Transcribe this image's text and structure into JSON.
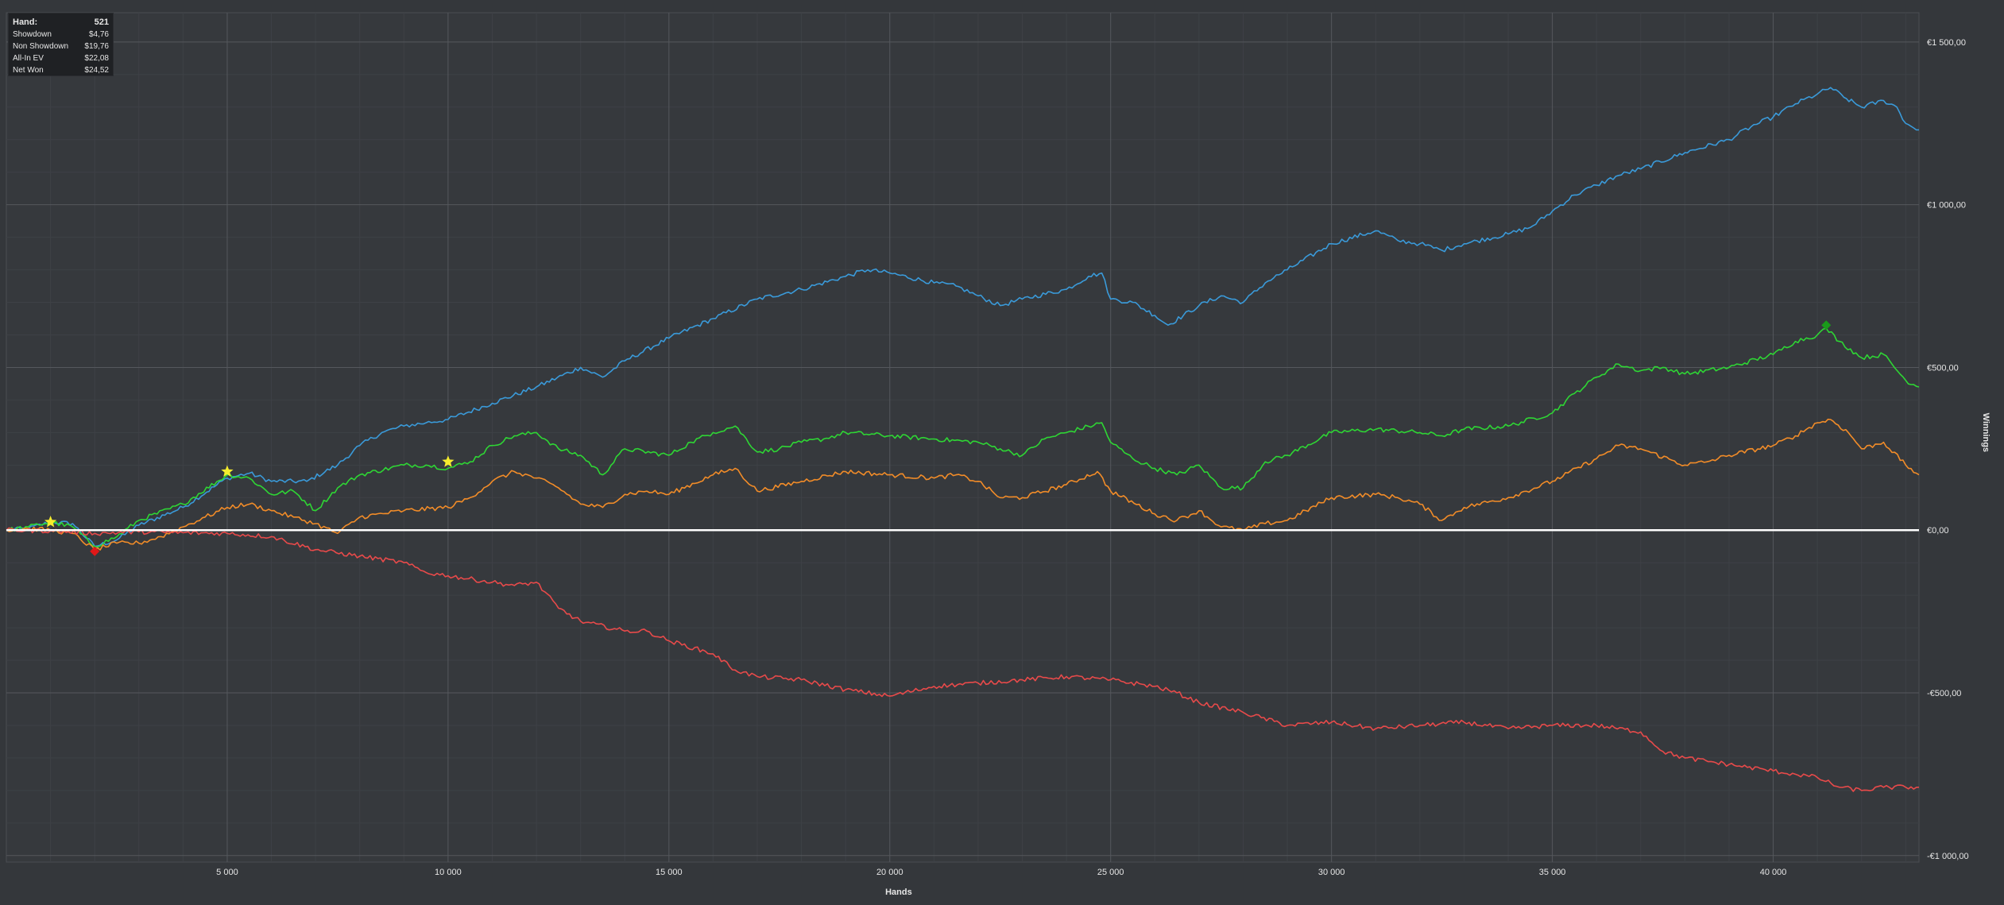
{
  "tooltip": {
    "hand_label": "Hand:",
    "hand_value": "521",
    "rows": [
      {
        "label": "Showdown",
        "value": "$4,76"
      },
      {
        "label": "Non Showdown",
        "value": "$19,76"
      },
      {
        "label": "All-In EV",
        "value": "$22,08"
      },
      {
        "label": "Net Won",
        "value": "$24,52"
      }
    ]
  },
  "chart_data": {
    "type": "line",
    "xlabel": "Hands",
    "ylabel": "Winnings",
    "xlim": [
      0,
      43300
    ],
    "ylim": [
      -1020,
      1590
    ],
    "x_ticks": [
      5000,
      10000,
      15000,
      20000,
      25000,
      30000,
      35000,
      40000
    ],
    "x_tick_labels": [
      "5 000",
      "10 000",
      "15 000",
      "20 000",
      "25 000",
      "30 000",
      "35 000",
      "40 000"
    ],
    "y_ticks": [
      1500,
      1000,
      500,
      0,
      -500,
      -1000
    ],
    "y_tick_labels": [
      "€1 500,00",
      "€1 000,00",
      "€500,00",
      "€0,00",
      "-€500,00",
      "-€1 000,00"
    ],
    "grid": true,
    "zero_line_color": "#ffffff",
    "series": [
      {
        "color": "#3a9ad9",
        "points": [
          [
            0,
            0
          ],
          [
            500,
            5
          ],
          [
            1000,
            25
          ],
          [
            1500,
            20
          ],
          [
            2000,
            -50
          ],
          [
            2500,
            -30
          ],
          [
            3000,
            15
          ],
          [
            4000,
            70
          ],
          [
            5000,
            160
          ],
          [
            5500,
            175
          ],
          [
            6000,
            150
          ],
          [
            6800,
            150
          ],
          [
            7500,
            200
          ],
          [
            8000,
            260
          ],
          [
            8500,
            300
          ],
          [
            9000,
            320
          ],
          [
            9500,
            330
          ],
          [
            10000,
            340
          ],
          [
            11000,
            390
          ],
          [
            12000,
            440
          ],
          [
            13000,
            500
          ],
          [
            13500,
            470
          ],
          [
            14000,
            520
          ],
          [
            15000,
            590
          ],
          [
            16000,
            650
          ],
          [
            17000,
            710
          ],
          [
            18000,
            740
          ],
          [
            19000,
            780
          ],
          [
            19500,
            800
          ],
          [
            20000,
            790
          ],
          [
            21000,
            760
          ],
          [
            21500,
            750
          ],
          [
            22000,
            720
          ],
          [
            22500,
            690
          ],
          [
            23000,
            710
          ],
          [
            24000,
            740
          ],
          [
            24500,
            780
          ],
          [
            24800,
            790
          ],
          [
            25000,
            710
          ],
          [
            25500,
            700
          ],
          [
            26000,
            660
          ],
          [
            26300,
            630
          ],
          [
            27000,
            690
          ],
          [
            27500,
            720
          ],
          [
            28000,
            700
          ],
          [
            28500,
            760
          ],
          [
            29000,
            800
          ],
          [
            30000,
            880
          ],
          [
            31000,
            920
          ],
          [
            31500,
            890
          ],
          [
            32000,
            880
          ],
          [
            32500,
            860
          ],
          [
            33000,
            880
          ],
          [
            34000,
            910
          ],
          [
            34500,
            930
          ],
          [
            35000,
            980
          ],
          [
            35500,
            1030
          ],
          [
            36000,
            1060
          ],
          [
            36500,
            1090
          ],
          [
            37000,
            1110
          ],
          [
            38000,
            1160
          ],
          [
            39000,
            1200
          ],
          [
            39500,
            1240
          ],
          [
            40000,
            1270
          ],
          [
            40500,
            1310
          ],
          [
            41000,
            1340
          ],
          [
            41300,
            1360
          ],
          [
            41600,
            1330
          ],
          [
            42000,
            1300
          ],
          [
            42500,
            1320
          ],
          [
            42800,
            1300
          ],
          [
            43000,
            1250
          ],
          [
            43300,
            1230
          ]
        ]
      },
      {
        "color": "#2ed634",
        "points": [
          [
            0,
            0
          ],
          [
            500,
            10
          ],
          [
            1000,
            25
          ],
          [
            1500,
            10
          ],
          [
            2000,
            -50
          ],
          [
            2500,
            -20
          ],
          [
            3000,
            30
          ],
          [
            4000,
            80
          ],
          [
            5000,
            170
          ],
          [
            5500,
            160
          ],
          [
            6000,
            110
          ],
          [
            6500,
            120
          ],
          [
            7000,
            60
          ],
          [
            7500,
            130
          ],
          [
            8000,
            170
          ],
          [
            9000,
            200
          ],
          [
            9500,
            200
          ],
          [
            10000,
            190
          ],
          [
            10500,
            210
          ],
          [
            11000,
            260
          ],
          [
            11500,
            290
          ],
          [
            12000,
            300
          ],
          [
            12500,
            250
          ],
          [
            13000,
            230
          ],
          [
            13500,
            170
          ],
          [
            14000,
            250
          ],
          [
            15000,
            230
          ],
          [
            15500,
            270
          ],
          [
            16000,
            300
          ],
          [
            16500,
            320
          ],
          [
            17000,
            240
          ],
          [
            17500,
            250
          ],
          [
            18000,
            270
          ],
          [
            18500,
            280
          ],
          [
            19000,
            300
          ],
          [
            20000,
            290
          ],
          [
            21000,
            280
          ],
          [
            22000,
            270
          ],
          [
            22500,
            250
          ],
          [
            23000,
            230
          ],
          [
            23500,
            280
          ],
          [
            24000,
            300
          ],
          [
            24800,
            330
          ],
          [
            25000,
            270
          ],
          [
            25500,
            220
          ],
          [
            26000,
            190
          ],
          [
            26500,
            170
          ],
          [
            27000,
            200
          ],
          [
            27500,
            130
          ],
          [
            28000,
            130
          ],
          [
            28500,
            210
          ],
          [
            29000,
            230
          ],
          [
            30000,
            300
          ],
          [
            31000,
            310
          ],
          [
            32000,
            300
          ],
          [
            32500,
            290
          ],
          [
            33000,
            310
          ],
          [
            34000,
            320
          ],
          [
            35000,
            360
          ],
          [
            35500,
            420
          ],
          [
            36000,
            470
          ],
          [
            36500,
            510
          ],
          [
            37000,
            490
          ],
          [
            37500,
            500
          ],
          [
            38000,
            480
          ],
          [
            39000,
            500
          ],
          [
            40000,
            540
          ],
          [
            40500,
            580
          ],
          [
            41000,
            600
          ],
          [
            41200,
            620
          ],
          [
            41500,
            580
          ],
          [
            42000,
            530
          ],
          [
            42500,
            540
          ],
          [
            43000,
            460
          ],
          [
            43300,
            440
          ]
        ]
      },
      {
        "color": "#f28c28",
        "points": [
          [
            0,
            0
          ],
          [
            500,
            5
          ],
          [
            1000,
            0
          ],
          [
            1500,
            -10
          ],
          [
            2000,
            -60
          ],
          [
            2500,
            -40
          ],
          [
            3000,
            -40
          ],
          [
            3500,
            -20
          ],
          [
            4000,
            10
          ],
          [
            4500,
            40
          ],
          [
            5000,
            70
          ],
          [
            5500,
            80
          ],
          [
            6000,
            60
          ],
          [
            6500,
            40
          ],
          [
            7000,
            20
          ],
          [
            7500,
            -10
          ],
          [
            8000,
            40
          ],
          [
            9000,
            60
          ],
          [
            10000,
            70
          ],
          [
            10500,
            100
          ],
          [
            11000,
            150
          ],
          [
            11500,
            180
          ],
          [
            12000,
            160
          ],
          [
            12500,
            130
          ],
          [
            13000,
            80
          ],
          [
            13500,
            70
          ],
          [
            14000,
            110
          ],
          [
            14500,
            120
          ],
          [
            15000,
            110
          ],
          [
            16000,
            170
          ],
          [
            16500,
            190
          ],
          [
            17000,
            120
          ],
          [
            18000,
            150
          ],
          [
            19000,
            180
          ],
          [
            20000,
            170
          ],
          [
            21000,
            160
          ],
          [
            21500,
            170
          ],
          [
            22000,
            150
          ],
          [
            22500,
            100
          ],
          [
            23000,
            100
          ],
          [
            24000,
            140
          ],
          [
            24700,
            180
          ],
          [
            25000,
            120
          ],
          [
            26000,
            50
          ],
          [
            26500,
            30
          ],
          [
            27000,
            60
          ],
          [
            27500,
            10
          ],
          [
            28000,
            0
          ],
          [
            28500,
            20
          ],
          [
            29000,
            30
          ],
          [
            30000,
            100
          ],
          [
            31000,
            110
          ],
          [
            31500,
            100
          ],
          [
            32000,
            80
          ],
          [
            32500,
            30
          ],
          [
            33000,
            70
          ],
          [
            34000,
            100
          ],
          [
            35000,
            150
          ],
          [
            36000,
            220
          ],
          [
            36500,
            260
          ],
          [
            37000,
            250
          ],
          [
            38000,
            200
          ],
          [
            38500,
            210
          ],
          [
            39000,
            230
          ],
          [
            40000,
            260
          ],
          [
            40500,
            290
          ],
          [
            41000,
            330
          ],
          [
            41300,
            340
          ],
          [
            41700,
            300
          ],
          [
            42000,
            250
          ],
          [
            42500,
            270
          ],
          [
            43000,
            200
          ],
          [
            43300,
            170
          ]
        ]
      },
      {
        "color": "#e84a4a",
        "points": [
          [
            0,
            0
          ],
          [
            1000,
            -2
          ],
          [
            2000,
            -10
          ],
          [
            3000,
            -5
          ],
          [
            4000,
            -8
          ],
          [
            5000,
            -10
          ],
          [
            6000,
            -20
          ],
          [
            7000,
            -60
          ],
          [
            8000,
            -80
          ],
          [
            9000,
            -100
          ],
          [
            9500,
            -130
          ],
          [
            10000,
            -140
          ],
          [
            11000,
            -160
          ],
          [
            11500,
            -170
          ],
          [
            12000,
            -160
          ],
          [
            12500,
            -240
          ],
          [
            13000,
            -280
          ],
          [
            14000,
            -310
          ],
          [
            14500,
            -310
          ],
          [
            15000,
            -340
          ],
          [
            16000,
            -380
          ],
          [
            16500,
            -430
          ],
          [
            17000,
            -450
          ],
          [
            18000,
            -460
          ],
          [
            19000,
            -490
          ],
          [
            20000,
            -510
          ],
          [
            21000,
            -480
          ],
          [
            22000,
            -470
          ],
          [
            23000,
            -460
          ],
          [
            24000,
            -450
          ],
          [
            25000,
            -460
          ],
          [
            26000,
            -480
          ],
          [
            26500,
            -500
          ],
          [
            27000,
            -530
          ],
          [
            28000,
            -560
          ],
          [
            29000,
            -600
          ],
          [
            30000,
            -590
          ],
          [
            31000,
            -610
          ],
          [
            32000,
            -600
          ],
          [
            33000,
            -590
          ],
          [
            34000,
            -610
          ],
          [
            35000,
            -600
          ],
          [
            36000,
            -600
          ],
          [
            37000,
            -620
          ],
          [
            37500,
            -680
          ],
          [
            38000,
            -700
          ],
          [
            39000,
            -720
          ],
          [
            40000,
            -740
          ],
          [
            40500,
            -750
          ],
          [
            41000,
            -760
          ],
          [
            41500,
            -790
          ],
          [
            42000,
            -800
          ],
          [
            42500,
            -790
          ],
          [
            43000,
            -790
          ],
          [
            43300,
            -790
          ]
        ]
      }
    ],
    "markers": [
      {
        "shape": "star",
        "color": "#f5ec2e",
        "x": 1000,
        "y": 25
      },
      {
        "shape": "star",
        "color": "#f5ec2e",
        "x": 5000,
        "y": 180
      },
      {
        "shape": "star",
        "color": "#f5ec2e",
        "x": 10000,
        "y": 210
      },
      {
        "shape": "diamond",
        "color": "#e01818",
        "x": 2000,
        "y": -65
      },
      {
        "shape": "diamond",
        "color": "#1a9a1a",
        "x": 41200,
        "y": 630
      }
    ]
  }
}
